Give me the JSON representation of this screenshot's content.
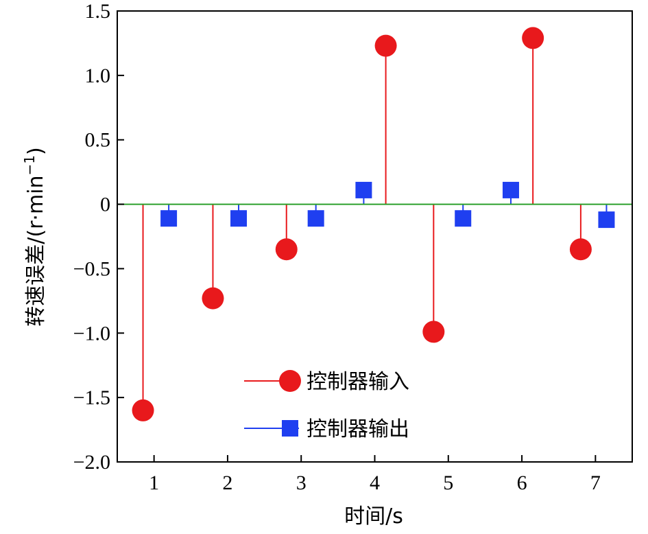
{
  "chart_data": {
    "type": "stem",
    "title": "",
    "xlabel": "时间/s",
    "ylabel": {
      "main": "转速误差/(r·min",
      "sup": "−1",
      "close": ")"
    },
    "xlim": [
      0.5,
      7.5
    ],
    "ylim": [
      -2.0,
      1.5
    ],
    "x_ticks": [
      1,
      2,
      3,
      4,
      5,
      6,
      7
    ],
    "x_tick_labels": [
      "1",
      "2",
      "3",
      "4",
      "5",
      "6",
      "7"
    ],
    "y_ticks": [
      1.5,
      1.0,
      0.5,
      0,
      -0.5,
      -1.0,
      -1.5,
      -2.0
    ],
    "y_tick_labels": [
      "1.5",
      "1.0",
      "0.5",
      "0",
      "−0.5",
      "−1.0",
      "−1.5",
      "−2.0"
    ],
    "baseline": {
      "y": 0,
      "color": "#2ca02c"
    },
    "legend_position": "lower-center",
    "series": [
      {
        "name": "控制器输入",
        "marker": "circle",
        "color": "#e8191c",
        "x": [
          0.85,
          1.8,
          2.8,
          4.15,
          4.8,
          6.15,
          6.8
        ],
        "values": [
          -1.6,
          -0.73,
          -0.35,
          1.23,
          -0.99,
          1.29,
          -0.35
        ]
      },
      {
        "name": "控制器输出",
        "marker": "square",
        "color": "#1f3ff0",
        "x": [
          1.2,
          2.15,
          3.2,
          3.85,
          5.2,
          5.85,
          7.15
        ],
        "values": [
          -0.11,
          -0.11,
          -0.11,
          0.11,
          -0.11,
          0.11,
          -0.12
        ]
      }
    ]
  }
}
